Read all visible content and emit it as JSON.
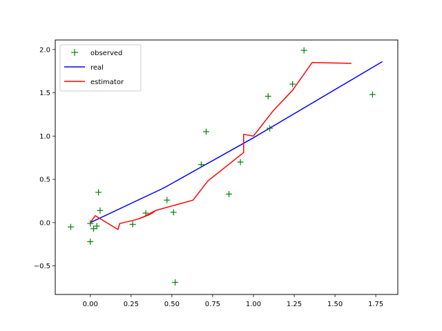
{
  "chart_data": {
    "type": "line",
    "title": "",
    "xlabel": "",
    "ylabel": "",
    "xlim": [
      -0.215,
      1.885
    ],
    "ylim": [
      -0.83,
      2.11
    ],
    "xticks": [
      0.0,
      0.25,
      0.5,
      0.75,
      1.0,
      1.25,
      1.5,
      1.75
    ],
    "xtick_labels": [
      "0.00",
      "0.25",
      "0.50",
      "0.75",
      "1.00",
      "1.25",
      "1.50",
      "1.75"
    ],
    "yticks": [
      -0.5,
      0.0,
      0.5,
      1.0,
      1.5,
      2.0
    ],
    "ytick_labels": [
      "−0.5",
      "0.0",
      "0.5",
      "1.0",
      "1.5",
      "2.0"
    ],
    "grid": false,
    "legend_position": "top-left",
    "series": [
      {
        "name": "observed",
        "kind": "scatter",
        "marker": "+",
        "color": "#008000",
        "points": [
          [
            -0.12,
            -0.05
          ],
          [
            0.0,
            -0.22
          ],
          [
            0.0,
            -0.01
          ],
          [
            0.02,
            -0.07
          ],
          [
            0.04,
            -0.04
          ],
          [
            0.05,
            0.35
          ],
          [
            0.06,
            0.14
          ],
          [
            0.26,
            -0.02
          ],
          [
            0.34,
            0.11
          ],
          [
            0.47,
            0.26
          ],
          [
            0.51,
            0.12
          ],
          [
            0.52,
            -0.69
          ],
          [
            0.68,
            0.67
          ],
          [
            0.71,
            1.05
          ],
          [
            0.85,
            0.33
          ],
          [
            0.92,
            0.7
          ],
          [
            1.09,
            1.46
          ],
          [
            1.1,
            1.09
          ],
          [
            1.24,
            1.6
          ],
          [
            1.31,
            1.99
          ],
          [
            1.73,
            1.48
          ]
        ]
      },
      {
        "name": "real",
        "kind": "line",
        "color": "#0000ff",
        "points": [
          [
            0.0,
            0.0
          ],
          [
            0.45,
            0.4
          ],
          [
            1.0,
            0.98
          ],
          [
            1.79,
            1.86
          ]
        ]
      },
      {
        "name": "estimator",
        "kind": "line",
        "color": "#ff0000",
        "points": [
          [
            0.0,
            0.0
          ],
          [
            0.03,
            0.08
          ],
          [
            0.17,
            -0.08
          ],
          [
            0.18,
            -0.01
          ],
          [
            0.25,
            0.02
          ],
          [
            0.29,
            0.04
          ],
          [
            0.36,
            0.09
          ],
          [
            0.4,
            0.14
          ],
          [
            0.38,
            0.11
          ],
          [
            0.32,
            0.06
          ],
          [
            0.29,
            0.04
          ],
          [
            0.33,
            0.07
          ],
          [
            0.4,
            0.14
          ],
          [
            0.63,
            0.26
          ],
          [
            0.72,
            0.48
          ],
          [
            0.94,
            0.81
          ],
          [
            0.94,
            1.02
          ],
          [
            1.0,
            1.0
          ],
          [
            1.12,
            1.29
          ],
          [
            1.24,
            1.53
          ],
          [
            1.36,
            1.85
          ],
          [
            1.6,
            1.84
          ]
        ]
      }
    ]
  }
}
